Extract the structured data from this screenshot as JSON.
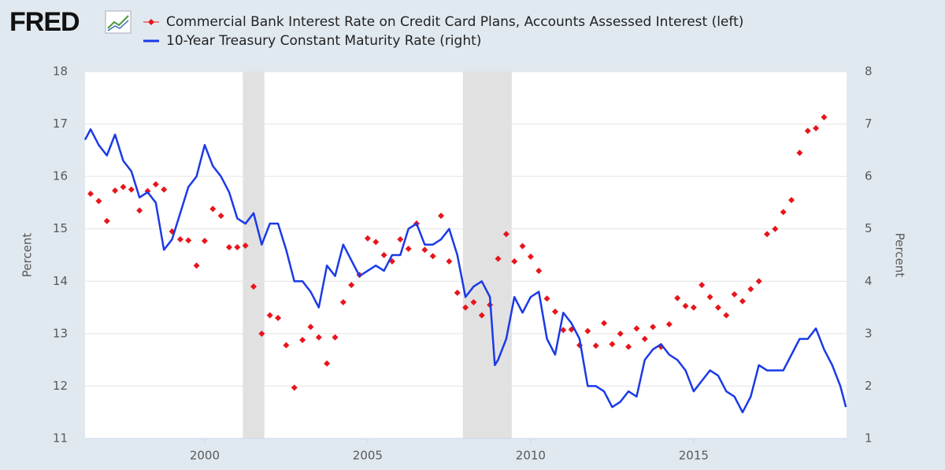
{
  "chart_data": {
    "type": "line",
    "logo": "FRED",
    "series": [
      {
        "name": "Commercial Bank Interest Rate on Credit Card Plans, Accounts Assessed Interest (left)",
        "color": "#e8141c",
        "marker": "diamond",
        "axis": "y",
        "x": [
          1996.5,
          1996.75,
          1997,
          1997.25,
          1997.5,
          1997.75,
          1998,
          1998.25,
          1998.5,
          1998.75,
          1999,
          1999.25,
          1999.5,
          1999.75,
          2000,
          2000.25,
          2000.5,
          2000.75,
          2001,
          2001.25,
          2001.5,
          2001.75,
          2002,
          2002.25,
          2002.5,
          2002.75,
          2003,
          2003.25,
          2003.5,
          2003.75,
          2004,
          2004.25,
          2004.5,
          2004.75,
          2005,
          2005.25,
          2005.5,
          2005.75,
          2006,
          2006.25,
          2006.5,
          2006.75,
          2007,
          2007.25,
          2007.5,
          2007.75,
          2008,
          2008.25,
          2008.5,
          2008.75,
          2009,
          2009.25,
          2009.5,
          2009.75,
          2010,
          2010.25,
          2010.5,
          2010.75,
          2011,
          2011.25,
          2011.5,
          2011.75,
          2012,
          2012.25,
          2012.5,
          2012.75,
          2013,
          2013.25,
          2013.5,
          2013.75,
          2014,
          2014.25,
          2014.5,
          2014.75,
          2015,
          2015.25,
          2015.5,
          2015.75,
          2016,
          2016.25,
          2016.5,
          2016.75,
          2017,
          2017.25,
          2017.5,
          2017.75,
          2018,
          2018.25,
          2018.5,
          2018.75,
          2019
        ],
        "values": [
          15.67,
          15.53,
          15.15,
          15.73,
          15.8,
          15.75,
          15.35,
          15.72,
          15.85,
          15.75,
          14.95,
          14.8,
          14.78,
          14.3,
          14.77,
          15.38,
          15.25,
          14.65,
          14.65,
          14.68,
          13.9,
          13.0,
          13.35,
          13.3,
          12.78,
          11.97,
          12.88,
          13.13,
          12.93,
          12.43,
          12.93,
          13.6,
          13.93,
          14.12,
          14.82,
          14.75,
          14.5,
          14.38,
          14.8,
          14.62,
          15.1,
          14.6,
          14.48,
          15.25,
          14.38,
          13.78,
          13.5,
          13.6,
          13.35,
          13.55,
          14.43,
          14.9,
          14.38,
          14.67,
          14.47,
          14.2,
          13.67,
          13.42,
          13.07,
          13.08,
          12.78,
          13.05,
          12.77,
          13.2,
          12.8,
          13.0,
          12.75,
          13.1,
          12.9,
          13.13,
          12.75,
          13.18,
          13.68,
          13.53,
          13.5,
          13.93,
          13.7,
          13.5,
          13.35,
          13.75,
          13.62,
          13.85,
          14.0,
          14.9,
          15.0,
          15.32,
          15.55,
          16.45,
          16.87,
          16.92,
          17.13
        ]
      },
      {
        "name": "10-Year Treasury Constant Maturity Rate (right)",
        "color": "#1a3ae6",
        "axis": "y2",
        "x": [
          1996.33,
          1996.5,
          1996.75,
          1997,
          1997.25,
          1997.5,
          1997.75,
          1998,
          1998.25,
          1998.5,
          1998.75,
          1999,
          1999.25,
          1999.5,
          1999.75,
          2000,
          2000.25,
          2000.5,
          2000.75,
          2001,
          2001.25,
          2001.5,
          2001.75,
          2002,
          2002.25,
          2002.5,
          2002.75,
          2003,
          2003.25,
          2003.5,
          2003.75,
          2004,
          2004.25,
          2004.5,
          2004.75,
          2005,
          2005.25,
          2005.5,
          2005.75,
          2006,
          2006.25,
          2006.5,
          2006.75,
          2007,
          2007.25,
          2007.5,
          2007.75,
          2008,
          2008.25,
          2008.5,
          2008.75,
          2008.9,
          2009,
          2009.25,
          2009.5,
          2009.75,
          2010,
          2010.25,
          2010.5,
          2010.75,
          2011,
          2011.25,
          2011.5,
          2011.75,
          2012,
          2012.25,
          2012.5,
          2012.75,
          2013,
          2013.25,
          2013.5,
          2013.75,
          2014,
          2014.25,
          2014.5,
          2014.75,
          2015,
          2015.25,
          2015.5,
          2015.75,
          2016,
          2016.25,
          2016.5,
          2016.75,
          2017,
          2017.25,
          2017.5,
          2017.75,
          2018,
          2018.25,
          2018.5,
          2018.75,
          2019,
          2019.25,
          2019.5,
          2019.67
        ],
        "values": [
          6.7,
          6.9,
          6.6,
          6.4,
          6.8,
          6.3,
          6.1,
          5.6,
          5.7,
          5.5,
          4.6,
          4.8,
          5.3,
          5.8,
          6.0,
          6.6,
          6.2,
          6.0,
          5.7,
          5.2,
          5.1,
          5.3,
          4.7,
          5.1,
          5.1,
          4.6,
          4.0,
          4.0,
          3.8,
          3.5,
          4.3,
          4.1,
          4.7,
          4.4,
          4.1,
          4.2,
          4.3,
          4.2,
          4.5,
          4.5,
          5.0,
          5.1,
          4.7,
          4.7,
          4.8,
          5.0,
          4.5,
          3.7,
          3.9,
          4.0,
          3.7,
          2.4,
          2.5,
          2.9,
          3.7,
          3.4,
          3.7,
          3.8,
          2.9,
          2.6,
          3.4,
          3.2,
          2.9,
          2.0,
          2.0,
          1.9,
          1.6,
          1.7,
          1.9,
          1.8,
          2.5,
          2.7,
          2.8,
          2.6,
          2.5,
          2.3,
          1.9,
          2.1,
          2.3,
          2.2,
          1.9,
          1.8,
          1.5,
          1.8,
          2.4,
          2.3,
          2.3,
          2.3,
          2.6,
          2.9,
          2.9,
          3.1,
          2.7,
          2.4,
          2.0,
          1.6
        ]
      }
    ],
    "xlim": [
      1996.33,
      2019.69
    ],
    "xticks": [
      2000,
      2005,
      2010,
      2015
    ],
    "ylim": [
      11,
      18
    ],
    "yticks": [
      11,
      12,
      13,
      14,
      15,
      16,
      17,
      18
    ],
    "y2lim": [
      1,
      8
    ],
    "y2ticks": [
      1,
      2,
      3,
      4,
      5,
      6,
      7,
      8
    ],
    "ylabel": "Percent",
    "y2label": "Percent",
    "recessions": [
      [
        2001.17,
        2001.83
      ],
      [
        2007.92,
        2009.42
      ]
    ],
    "grid": true
  }
}
